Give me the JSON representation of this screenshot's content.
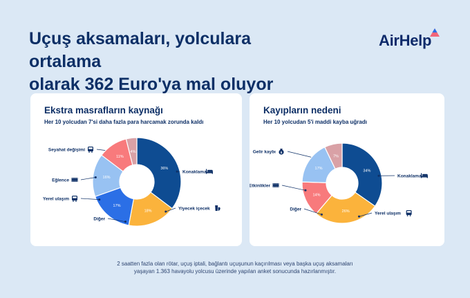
{
  "header": {
    "title_line1": "Uçuş aksamaları, yolculara ortalama",
    "title_line2": "olarak 362 Euro'ya mal oluyor",
    "brand": "AirHelp"
  },
  "chart_data": [
    {
      "type": "pie",
      "donut": true,
      "title": "Ekstra masrafların kaynağı",
      "subtitle": "Her 10 yolcudan 7'si daha fazla para harcamak zorunda kaldı",
      "legend": "none",
      "slices": [
        {
          "label": "Seyahat değişimi",
          "value": 36,
          "display": "36%",
          "color": "#0e4c92",
          "icon": "tram-icon"
        },
        {
          "label": "Konaklama",
          "value": 18,
          "display": "18%",
          "color": "#fbb33c",
          "icon": "bed-icon"
        },
        {
          "label": "Yiyecek içecek",
          "value": 17,
          "display": "17%",
          "color": "#2b6fe6",
          "icon": "drink-icon"
        },
        {
          "label": "Diğer",
          "value": 16,
          "display": "16%",
          "color": "#98c2f2",
          "icon": "none"
        },
        {
          "label": "Yerel ulaşım",
          "value": 11,
          "display": "11%",
          "color": "#f87a7c",
          "icon": "bus-icon"
        },
        {
          "label": "Eğlence",
          "value": 4,
          "display": "4%",
          "color": "#d9a1a6",
          "icon": "film-icon"
        }
      ]
    },
    {
      "type": "pie",
      "donut": true,
      "title": "Kayıpların nedeni",
      "subtitle": "Her 10 yolcudan 5'i maddi kayba uğradı",
      "legend": "none",
      "slices": [
        {
          "label": "Gelir kaybı",
          "value": 34,
          "display": "34%",
          "color": "#0e4c92",
          "icon": "money-bag-icon"
        },
        {
          "label": "Konaklama",
          "value": 26,
          "display": "26%",
          "color": "#fbb33c",
          "icon": "bed-icon"
        },
        {
          "label": "Yerel ulaşım",
          "value": 14,
          "display": "14%",
          "color": "#f87a7c",
          "icon": "bus-icon"
        },
        {
          "label": "Diğer",
          "value": 17,
          "display": "17%",
          "color": "#98c2f2",
          "icon": "none"
        },
        {
          "label": "Etkinlikler",
          "value": 7,
          "display": "7%",
          "color": "#d9a1a6",
          "icon": "film-icon"
        }
      ]
    }
  ],
  "footnote": {
    "line1": "2 saatten fazla olan rötar, uçuş iptali, bağlantı uçuşunun kaçırılması veya başka uçuş aksamaları",
    "line2": "yaşayan 1.363 havayolu yolcusu üzerinde yapılan anket sonucunda hazırlanmıştır."
  }
}
